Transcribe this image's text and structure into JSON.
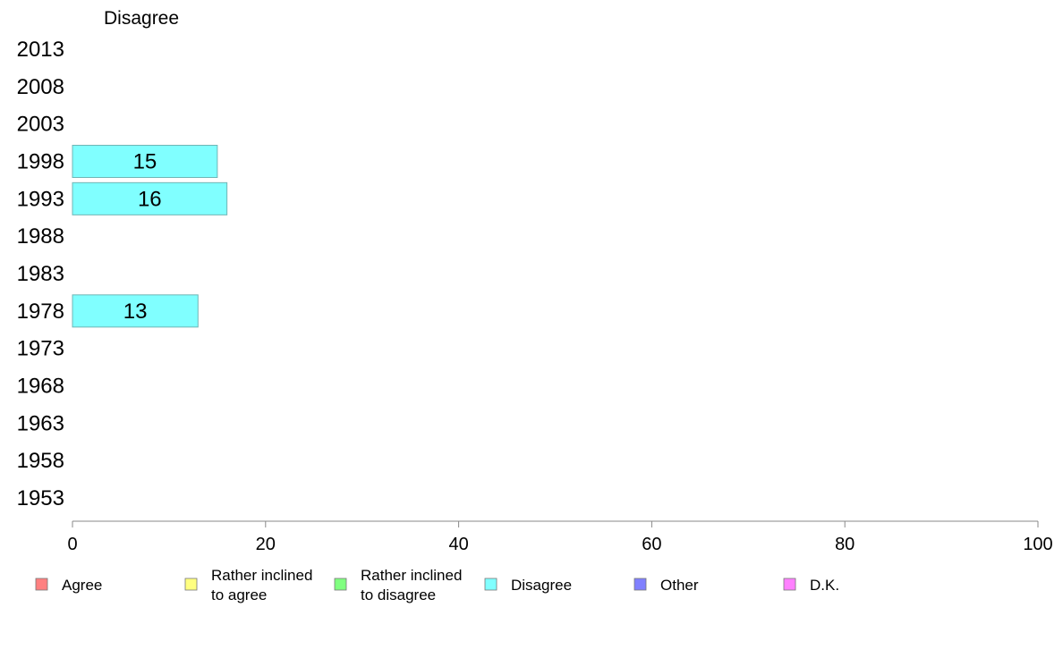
{
  "chart_data": {
    "type": "bar",
    "orientation": "horizontal",
    "title": "Disagree",
    "categories": [
      "2013",
      "2008",
      "2003",
      "1998",
      "1993",
      "1988",
      "1983",
      "1978",
      "1973",
      "1968",
      "1963",
      "1958",
      "1953"
    ],
    "series": [
      {
        "name": "Disagree",
        "color": "#80ffff",
        "values": [
          null,
          null,
          null,
          15,
          16,
          null,
          null,
          13,
          null,
          null,
          null,
          null,
          null
        ]
      }
    ],
    "xlim": [
      0,
      100
    ],
    "xticks": [
      0,
      20,
      40,
      60,
      80,
      100
    ],
    "grid": false,
    "legend_position": "bottom",
    "legend": [
      {
        "label": [
          "Agree"
        ],
        "color": "#ff8080"
      },
      {
        "label": [
          "Rather inclined",
          "to agree"
        ],
        "color": "#ffff80"
      },
      {
        "label": [
          "Rather inclined",
          "to disagree"
        ],
        "color": "#80ff80"
      },
      {
        "label": [
          "Disagree"
        ],
        "color": "#80ffff"
      },
      {
        "label": [
          "Other"
        ],
        "color": "#8080ff"
      },
      {
        "label": [
          "D.K."
        ],
        "color": "#ff80ff"
      }
    ]
  }
}
